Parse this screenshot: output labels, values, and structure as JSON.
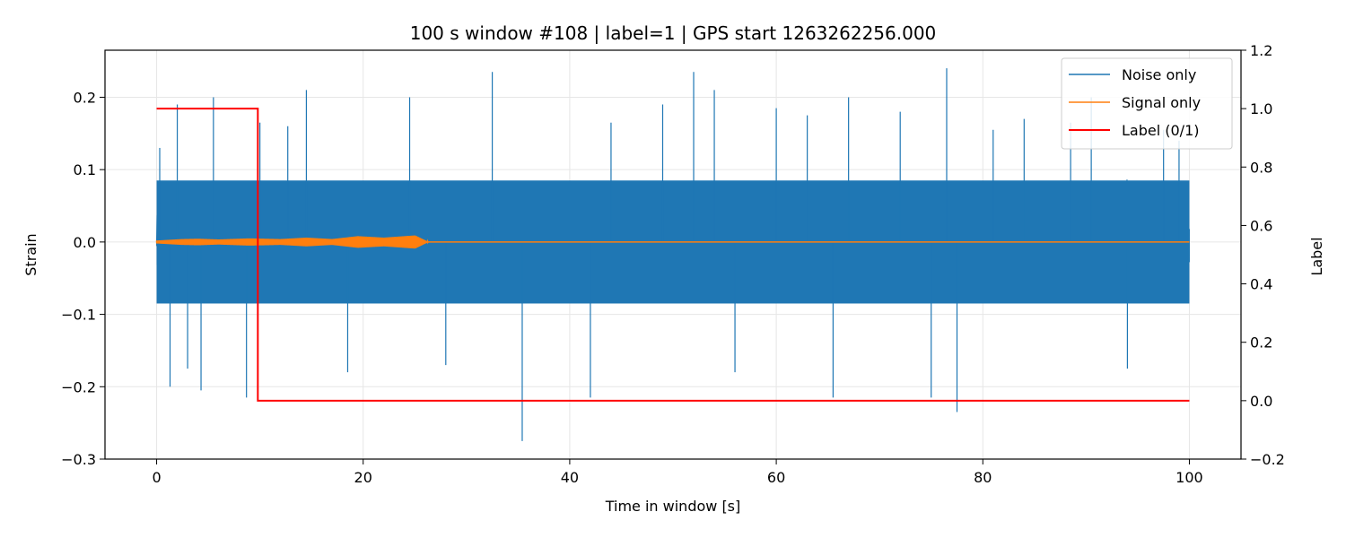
{
  "chart_data": {
    "type": "line",
    "title": "100 s window #108 | label=1 | GPS start 1263262256.000",
    "xlabel": "Time in window [s]",
    "ylabel": "Strain",
    "y2label": "Label",
    "xlim": [
      -5,
      105
    ],
    "ylim": [
      -0.3,
      0.265
    ],
    "y2lim": [
      -0.2,
      1.2
    ],
    "xticks": [
      0,
      20,
      40,
      60,
      80,
      100
    ],
    "yticks": [
      -0.3,
      -0.2,
      -0.1,
      0.0,
      0.1,
      0.2
    ],
    "y2ticks": [
      -0.2,
      0.0,
      0.2,
      0.4,
      0.6,
      0.8,
      1.0,
      1.2
    ],
    "xtick_labels": [
      "0",
      "20",
      "40",
      "60",
      "80",
      "100"
    ],
    "ytick_labels": [
      "−0.3",
      "−0.2",
      "−0.1",
      "0.0",
      "0.1",
      "0.2"
    ],
    "y2tick_labels": [
      "−0.2",
      "0.0",
      "0.2",
      "0.4",
      "0.6",
      "0.8",
      "1.0",
      "1.2"
    ],
    "grid": true,
    "legend_position": "top-right",
    "series": [
      {
        "name": "Noise only",
        "axis": "left",
        "color": "#1f77b4",
        "sampled": true,
        "x_range": [
          0,
          100
        ],
        "typical_amplitude": 0.085,
        "notable_peaks": [
          {
            "x": 0.3,
            "y": 0.13
          },
          {
            "x": 1.3,
            "y": -0.2
          },
          {
            "x": 2.0,
            "y": 0.19
          },
          {
            "x": 3.0,
            "y": -0.175
          },
          {
            "x": 4.3,
            "y": -0.205
          },
          {
            "x": 5.5,
            "y": 0.2
          },
          {
            "x": 8.7,
            "y": -0.215
          },
          {
            "x": 10.0,
            "y": 0.165
          },
          {
            "x": 12.7,
            "y": 0.16
          },
          {
            "x": 14.5,
            "y": 0.21
          },
          {
            "x": 18.5,
            "y": -0.18
          },
          {
            "x": 24.5,
            "y": 0.2
          },
          {
            "x": 28.0,
            "y": -0.17
          },
          {
            "x": 32.5,
            "y": 0.235
          },
          {
            "x": 35.4,
            "y": -0.275
          },
          {
            "x": 42.0,
            "y": -0.215
          },
          {
            "x": 44.0,
            "y": 0.165
          },
          {
            "x": 49.0,
            "y": 0.19
          },
          {
            "x": 52.0,
            "y": 0.235
          },
          {
            "x": 54.0,
            "y": 0.21
          },
          {
            "x": 56.0,
            "y": -0.18
          },
          {
            "x": 60.0,
            "y": 0.185
          },
          {
            "x": 63.0,
            "y": 0.175
          },
          {
            "x": 65.5,
            "y": -0.215
          },
          {
            "x": 67.0,
            "y": 0.2
          },
          {
            "x": 72.0,
            "y": 0.18
          },
          {
            "x": 75.0,
            "y": -0.215
          },
          {
            "x": 76.5,
            "y": 0.24
          },
          {
            "x": 77.5,
            "y": -0.235
          },
          {
            "x": 81.0,
            "y": 0.155
          },
          {
            "x": 84.0,
            "y": 0.17
          },
          {
            "x": 88.5,
            "y": 0.165
          },
          {
            "x": 90.5,
            "y": 0.2
          },
          {
            "x": 94.0,
            "y": -0.175
          },
          {
            "x": 97.5,
            "y": 0.155
          },
          {
            "x": 99.0,
            "y": 0.14
          }
        ]
      },
      {
        "name": "Signal only",
        "axis": "left",
        "color": "#ff7f0e",
        "sampled": true,
        "x_range": [
          0,
          100
        ],
        "active_range": [
          0,
          26.3
        ],
        "envelope": [
          {
            "x": 0,
            "a": 0.002
          },
          {
            "x": 2.5,
            "a": 0.004
          },
          {
            "x": 4,
            "a": 0.0045
          },
          {
            "x": 6,
            "a": 0.0035
          },
          {
            "x": 9,
            "a": 0.005
          },
          {
            "x": 12,
            "a": 0.004
          },
          {
            "x": 14.5,
            "a": 0.006
          },
          {
            "x": 17,
            "a": 0.004
          },
          {
            "x": 19.5,
            "a": 0.008
          },
          {
            "x": 22,
            "a": 0.006
          },
          {
            "x": 25,
            "a": 0.009
          },
          {
            "x": 26.3,
            "a": 0.0
          }
        ]
      },
      {
        "name": "Label (0/1)",
        "axis": "right",
        "color": "#ff0000",
        "x": [
          0,
          9.8,
          9.8,
          100
        ],
        "values": [
          1,
          1,
          0,
          0
        ]
      }
    ]
  }
}
